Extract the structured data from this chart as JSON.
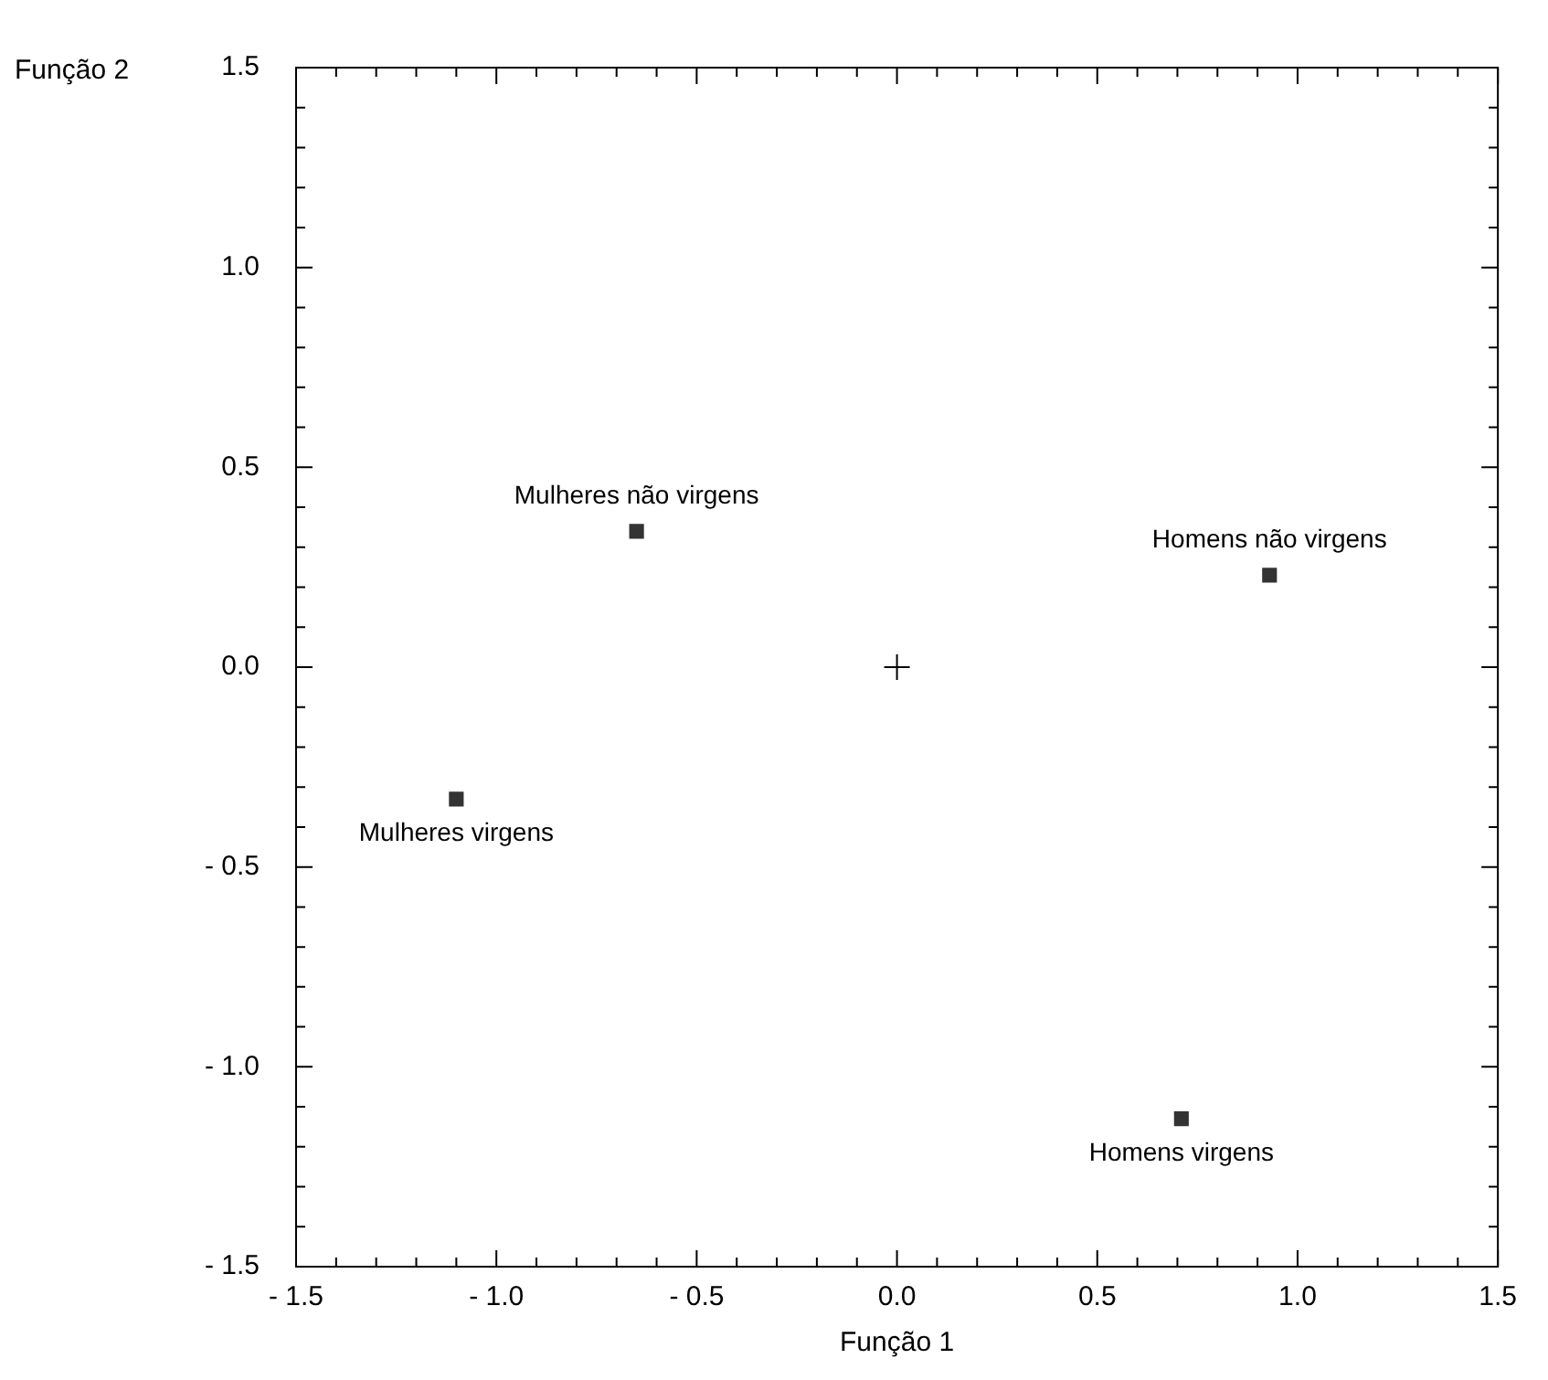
{
  "chart_data": {
    "type": "scatter",
    "xlabel": "Função 1",
    "ylabel": "Função 2",
    "xlim": [
      -1.5,
      1.5
    ],
    "ylim": [
      -1.5,
      1.5
    ],
    "xticks": [
      {
        "value": -1.5,
        "label": "- 1.5"
      },
      {
        "value": -1.4,
        "label": null
      },
      {
        "value": -1.3,
        "label": null
      },
      {
        "value": -1.2,
        "label": null
      },
      {
        "value": -1.1,
        "label": null
      },
      {
        "value": -1.0,
        "label": "- 1.0"
      },
      {
        "value": -0.9,
        "label": null
      },
      {
        "value": -0.8,
        "label": null
      },
      {
        "value": -0.7,
        "label": null
      },
      {
        "value": -0.6,
        "label": null
      },
      {
        "value": -0.5,
        "label": "- 0.5"
      },
      {
        "value": -0.4,
        "label": null
      },
      {
        "value": -0.3,
        "label": null
      },
      {
        "value": -0.2,
        "label": null
      },
      {
        "value": -0.1,
        "label": null
      },
      {
        "value": 0,
        "label": "0.0"
      },
      {
        "value": 0.1,
        "label": null
      },
      {
        "value": 0.2,
        "label": null
      },
      {
        "value": 0.3,
        "label": null
      },
      {
        "value": 0.4,
        "label": null
      },
      {
        "value": 0.5,
        "label": "0.5"
      },
      {
        "value": 0.6,
        "label": null
      },
      {
        "value": 0.7,
        "label": null
      },
      {
        "value": 0.8,
        "label": null
      },
      {
        "value": 0.9,
        "label": null
      },
      {
        "value": 1.0,
        "label": "1.0"
      },
      {
        "value": 1.1,
        "label": null
      },
      {
        "value": 1.2,
        "label": null
      },
      {
        "value": 1.3,
        "label": null
      },
      {
        "value": 1.4,
        "label": null
      },
      {
        "value": 1.5,
        "label": "1.5"
      }
    ],
    "yticks": [
      {
        "value": -1.5,
        "label": "- 1.5"
      },
      {
        "value": -1.4,
        "label": null
      },
      {
        "value": -1.3,
        "label": null
      },
      {
        "value": -1.2,
        "label": null
      },
      {
        "value": -1.1,
        "label": null
      },
      {
        "value": -1.0,
        "label": "- 1.0"
      },
      {
        "value": -0.9,
        "label": null
      },
      {
        "value": -0.8,
        "label": null
      },
      {
        "value": -0.7,
        "label": null
      },
      {
        "value": -0.6,
        "label": null
      },
      {
        "value": -0.5,
        "label": "- 0.5"
      },
      {
        "value": -0.4,
        "label": null
      },
      {
        "value": -0.3,
        "label": null
      },
      {
        "value": -0.2,
        "label": null
      },
      {
        "value": -0.1,
        "label": null
      },
      {
        "value": 0,
        "label": "0.0"
      },
      {
        "value": 0.1,
        "label": null
      },
      {
        "value": 0.2,
        "label": null
      },
      {
        "value": 0.3,
        "label": null
      },
      {
        "value": 0.4,
        "label": null
      },
      {
        "value": 0.5,
        "label": "0.5"
      },
      {
        "value": 0.6,
        "label": null
      },
      {
        "value": 0.7,
        "label": null
      },
      {
        "value": 0.8,
        "label": null
      },
      {
        "value": 0.9,
        "label": null
      },
      {
        "value": 1.0,
        "label": "1.0"
      },
      {
        "value": 1.1,
        "label": null
      },
      {
        "value": 1.2,
        "label": null
      },
      {
        "value": 1.3,
        "label": null
      },
      {
        "value": 1.4,
        "label": null
      },
      {
        "value": 1.5,
        "label": "1.5"
      }
    ],
    "series": [
      {
        "color": "#333333",
        "marker": "square",
        "x": [
          -0.65,
          -1.1,
          0.93,
          0.71
        ],
        "values": [
          0.34,
          -0.33,
          0.23,
          -1.13
        ]
      },
      {
        "color": "#000000",
        "marker": "cross",
        "x": [
          0
        ],
        "values": [
          0
        ]
      }
    ],
    "annotations": [
      {
        "text": "Mulheres não virgens",
        "x": -0.65,
        "y": 0.34
      },
      {
        "text": "Mulheres virgens",
        "x": -1.1,
        "y": -0.33
      },
      {
        "text": "Homens não virgens",
        "x": 0.93,
        "y": 0.23
      },
      {
        "text": "Homens virgens",
        "x": 0.71,
        "y": -1.13
      }
    ]
  }
}
